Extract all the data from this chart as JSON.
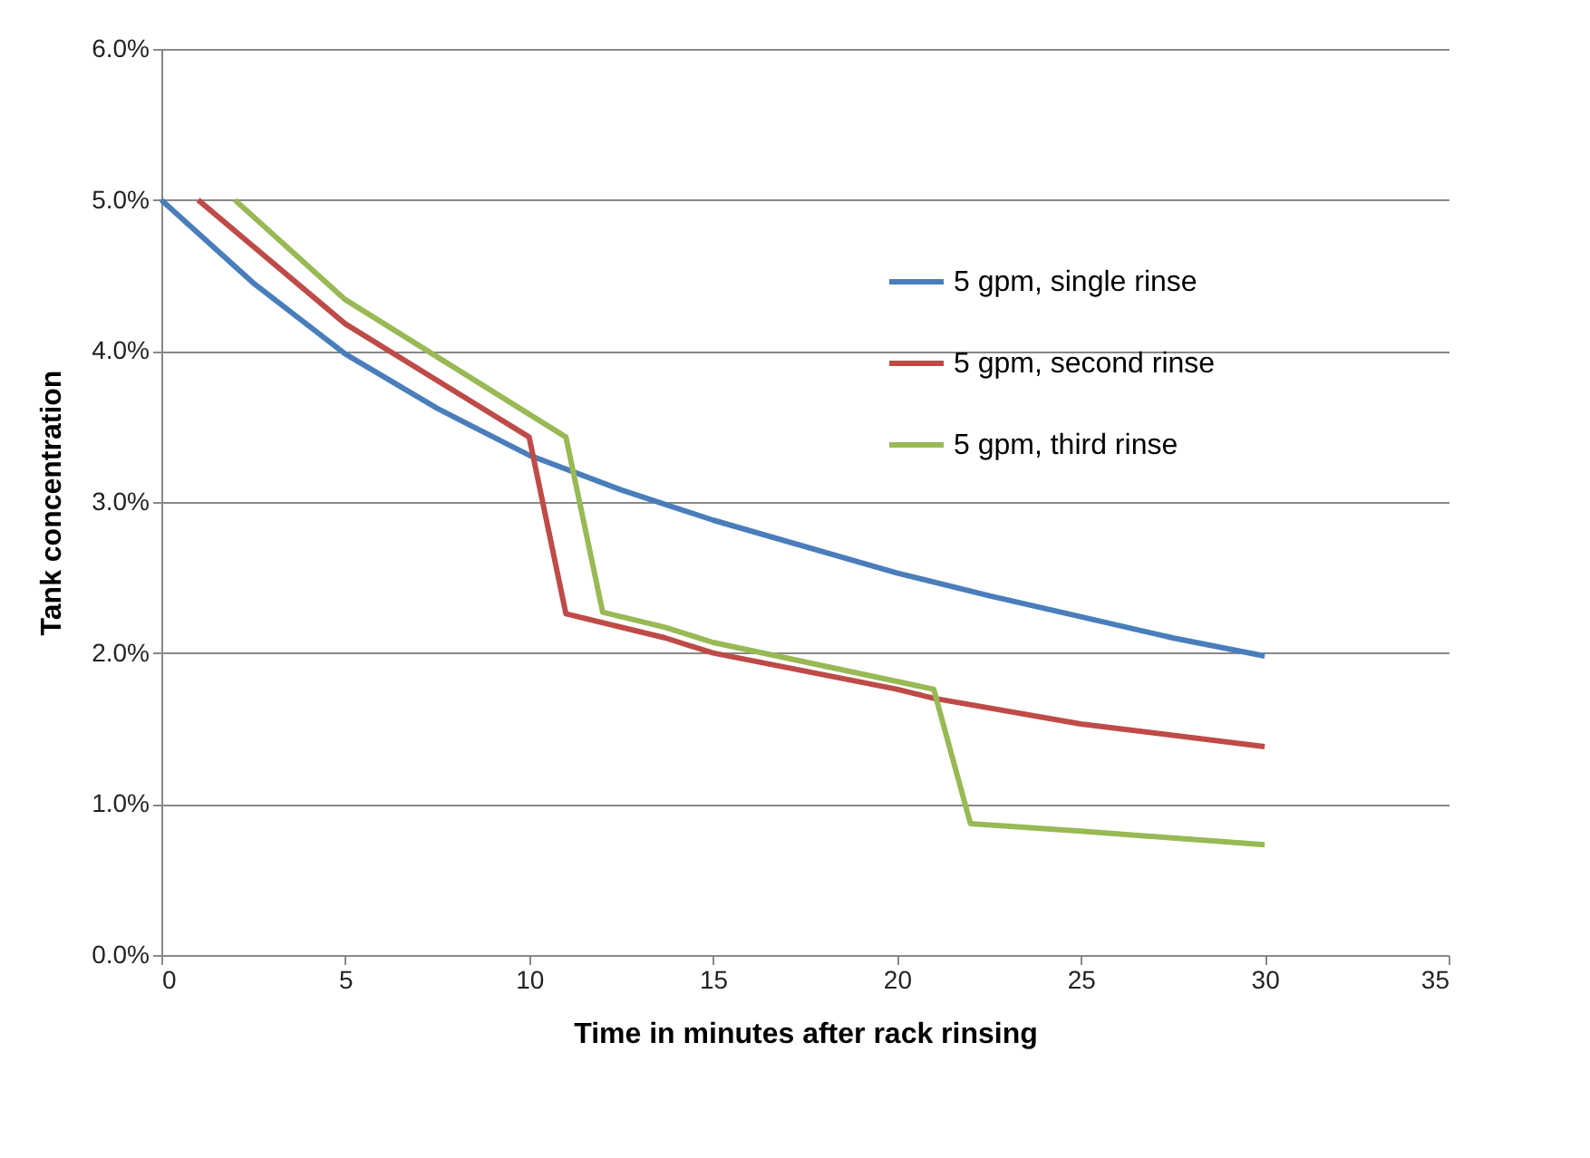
{
  "chart_data": {
    "type": "line",
    "xlabel": "Time in minutes after rack rinsing",
    "ylabel": "Tank concentration",
    "xlim": [
      0,
      35
    ],
    "xticks": [
      0,
      5,
      10,
      15,
      20,
      25,
      30,
      35
    ],
    "ylim": [
      0,
      0.06
    ],
    "yticks": [
      {
        "value": 0,
        "label": "0.0%"
      },
      {
        "value": 0.01,
        "label": "1.0%"
      },
      {
        "value": 0.02,
        "label": "2.0%"
      },
      {
        "value": 0.03,
        "label": "3.0%"
      },
      {
        "value": 0.04,
        "label": "4.0%"
      },
      {
        "value": 0.05,
        "label": "5.0%"
      },
      {
        "value": 0.06,
        "label": "6.0%"
      }
    ],
    "grid": "y",
    "legend": "top right",
    "marker": "none",
    "line_style": "solid",
    "series": [
      {
        "name": "5 gpm, single rinse",
        "color": "#4a7ebb",
        "x": [
          0,
          2.5,
          5,
          7.5,
          10,
          12.5,
          15,
          20,
          22.5,
          25,
          27.5,
          30
        ],
        "values": [
          0.05,
          0.0445,
          0.0398,
          0.0362,
          0.0331,
          0.0308,
          0.0288,
          0.0253,
          0.0238,
          0.0224,
          0.021,
          0.0198
        ]
      },
      {
        "name": "5 gpm, second rinse",
        "color": "#be4b48",
        "x": [
          1,
          5,
          10,
          11,
          13.7,
          15,
          20,
          21,
          25,
          30
        ],
        "values": [
          0.05,
          0.0418,
          0.0343,
          0.0226,
          0.021,
          0.02,
          0.0176,
          0.017,
          0.0153,
          0.0138
        ]
      },
      {
        "name": "5 gpm, third rinse",
        "color": "#98b954",
        "x": [
          2,
          5,
          11,
          12,
          13.7,
          15,
          21,
          22,
          25,
          30
        ],
        "values": [
          0.05,
          0.0434,
          0.0343,
          0.0227,
          0.0217,
          0.0207,
          0.0176,
          0.0087,
          0.0082,
          0.0073
        ]
      }
    ]
  }
}
